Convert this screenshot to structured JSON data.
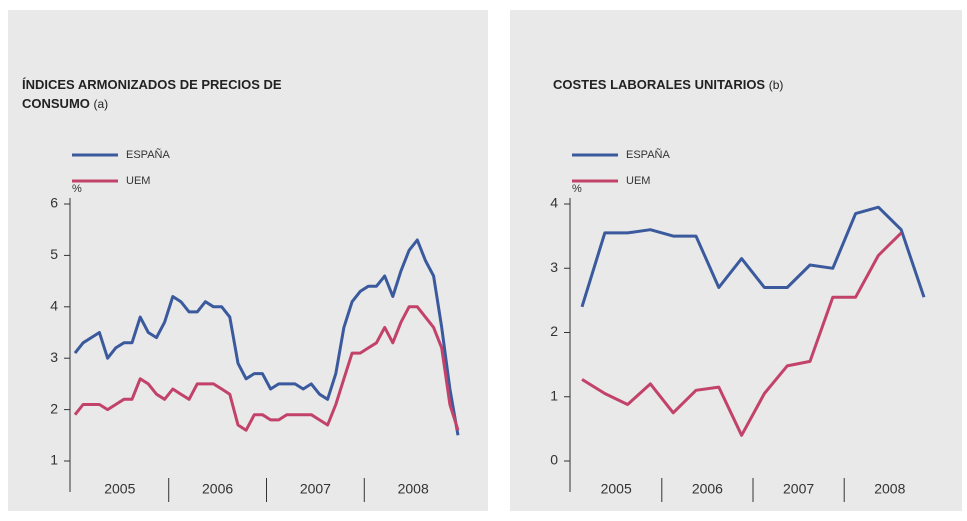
{
  "chart_data": [
    {
      "type": "line",
      "title": "ÍNDICES ARMONIZADOS DE PRECIOS DE CONSUMO",
      "title_note": "(a)",
      "y_unit": "%",
      "xlabels": [
        "2005",
        "2006",
        "2007",
        "2008"
      ],
      "ylim": [
        1,
        6
      ],
      "yticks": [
        1,
        2,
        3,
        4,
        5,
        6
      ],
      "series": [
        {
          "name": "ESPAÑA",
          "color": "#3b5a9d",
          "values": [
            3.1,
            3.3,
            3.4,
            3.5,
            3.0,
            3.2,
            3.3,
            3.3,
            3.8,
            3.5,
            3.4,
            3.7,
            4.2,
            4.1,
            3.9,
            3.9,
            4.1,
            4.0,
            4.0,
            3.8,
            2.9,
            2.6,
            2.7,
            2.7,
            2.4,
            2.5,
            2.5,
            2.5,
            2.4,
            2.5,
            2.3,
            2.2,
            2.7,
            3.6,
            4.1,
            4.3,
            4.4,
            4.4,
            4.6,
            4.2,
            4.7,
            5.1,
            5.3,
            4.9,
            4.6,
            3.6,
            2.4,
            1.5
          ]
        },
        {
          "name": "UEM",
          "color": "#c2426a",
          "values": [
            1.9,
            2.1,
            2.1,
            2.1,
            2.0,
            2.1,
            2.2,
            2.2,
            2.6,
            2.5,
            2.3,
            2.2,
            2.4,
            2.3,
            2.2,
            2.5,
            2.5,
            2.5,
            2.4,
            2.3,
            1.7,
            1.6,
            1.9,
            1.9,
            1.8,
            1.8,
            1.9,
            1.9,
            1.9,
            1.9,
            1.8,
            1.7,
            2.1,
            2.6,
            3.1,
            3.1,
            3.2,
            3.3,
            3.6,
            3.3,
            3.7,
            4.0,
            4.0,
            3.8,
            3.6,
            3.2,
            2.1,
            1.6
          ]
        }
      ]
    },
    {
      "type": "line",
      "title": "COSTES LABORALES UNITARIOS",
      "title_note": "(b)",
      "y_unit": "%",
      "xlabels": [
        "2005",
        "2006",
        "2007",
        "2008"
      ],
      "ylim": [
        0,
        4
      ],
      "yticks": [
        0,
        1,
        2,
        3,
        4
      ],
      "series": [
        {
          "name": "ESPAÑA",
          "color": "#3b5a9d",
          "values": [
            2.4,
            3.55,
            3.55,
            3.6,
            3.5,
            3.5,
            2.7,
            3.15,
            2.7,
            2.7,
            3.05,
            3.0,
            3.85,
            3.95,
            3.6,
            2.55
          ]
        },
        {
          "name": "UEM",
          "color": "#c2426a",
          "values": [
            1.27,
            1.05,
            0.88,
            1.2,
            0.75,
            1.1,
            1.15,
            0.4,
            1.05,
            1.48,
            1.55,
            2.55,
            2.55,
            3.2,
            3.55,
            null
          ]
        }
      ]
    }
  ]
}
